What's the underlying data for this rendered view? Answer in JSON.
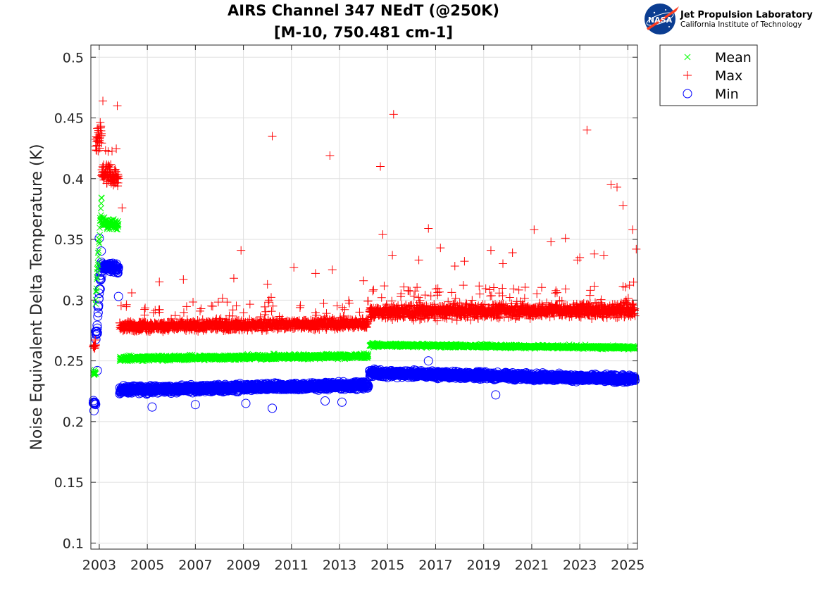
{
  "logo": {
    "emblem_text": "NASA",
    "org_name": "Jet Propulsion Laboratory",
    "org_sub": "California Institute of Technology"
  },
  "chart_data": {
    "type": "scatter",
    "title": [
      "AIRS Channel 347 NEdT (@250K)",
      "[M-10, 750.481 cm-1]"
    ],
    "xlabel": "",
    "ylabel": "Noise Equivalent Delta Temperature (K)",
    "xlim": [
      2002.65,
      2025.4
    ],
    "ylim": [
      0.095,
      0.51
    ],
    "xticks": [
      2003,
      2005,
      2007,
      2009,
      2011,
      2013,
      2015,
      2017,
      2019,
      2021,
      2023,
      2025
    ],
    "yticks": [
      0.1,
      0.15,
      0.2,
      0.25,
      0.3,
      0.35,
      0.4,
      0.45,
      0.5
    ],
    "ytick_labels": [
      "0.1",
      "0.15",
      "0.2",
      "0.25",
      "0.3",
      "0.35",
      "0.4",
      "0.45",
      "0.5"
    ],
    "grid": true,
    "legend_position": "outside-top-right",
    "series": [
      {
        "name": "Mean",
        "marker": "x",
        "color": "#00ff00",
        "segments": [
          {
            "x0": 2002.75,
            "x1": 2002.85,
            "y0": 0.24,
            "y1": 0.24,
            "spread": 0.004
          },
          {
            "x0": 2002.85,
            "x1": 2003.1,
            "y0": 0.3,
            "y1": 0.385,
            "spread": 0.012
          },
          {
            "x0": 2003.1,
            "x1": 2003.8,
            "y0": 0.364,
            "y1": 0.362,
            "spread": 0.006
          },
          {
            "x0": 2003.85,
            "x1": 2014.2,
            "y0": 0.252,
            "y1": 0.254,
            "spread": 0.003
          },
          {
            "x0": 2014.25,
            "x1": 2025.3,
            "y0": 0.263,
            "y1": 0.261,
            "spread": 0.002
          }
        ]
      },
      {
        "name": "Max",
        "marker": "+",
        "color": "#ff0000",
        "segments": [
          {
            "x0": 2002.75,
            "x1": 2002.85,
            "y0": 0.262,
            "y1": 0.262,
            "spread": 0.004
          },
          {
            "x0": 2002.85,
            "x1": 2003.1,
            "y0": 0.43,
            "y1": 0.44,
            "spread": 0.015
          },
          {
            "x0": 2003.1,
            "x1": 2003.8,
            "y0": 0.405,
            "y1": 0.4,
            "spread": 0.01
          },
          {
            "x0": 2003.85,
            "x1": 2014.2,
            "y0": 0.278,
            "y1": 0.281,
            "spread": 0.006
          },
          {
            "x0": 2014.25,
            "x1": 2025.3,
            "y0": 0.29,
            "y1": 0.292,
            "spread": 0.008
          }
        ],
        "outliers": [
          [
            2003.15,
            0.464
          ],
          [
            2003.75,
            0.46
          ],
          [
            2003.95,
            0.376
          ],
          [
            2004.35,
            0.306
          ],
          [
            2005.5,
            0.315
          ],
          [
            2006.5,
            0.317
          ],
          [
            2008.9,
            0.341
          ],
          [
            2008.6,
            0.318
          ],
          [
            2010.2,
            0.435
          ],
          [
            2010.0,
            0.313
          ],
          [
            2011.1,
            0.327
          ],
          [
            2012.0,
            0.322
          ],
          [
            2012.6,
            0.419
          ],
          [
            2012.7,
            0.325
          ],
          [
            2014.0,
            0.316
          ],
          [
            2014.7,
            0.41
          ],
          [
            2014.8,
            0.354
          ],
          [
            2015.25,
            0.453
          ],
          [
            2015.2,
            0.337
          ],
          [
            2016.7,
            0.359
          ],
          [
            2016.3,
            0.333
          ],
          [
            2017.2,
            0.343
          ],
          [
            2018.2,
            0.332
          ],
          [
            2019.3,
            0.341
          ],
          [
            2020.2,
            0.339
          ],
          [
            2021.1,
            0.358
          ],
          [
            2021.8,
            0.348
          ],
          [
            2022.4,
            0.351
          ],
          [
            2023.3,
            0.44
          ],
          [
            2023.6,
            0.338
          ],
          [
            2024.3,
            0.395
          ],
          [
            2024.55,
            0.393
          ],
          [
            2024.8,
            0.378
          ],
          [
            2025.2,
            0.358
          ],
          [
            2025.35,
            0.342
          ],
          [
            2023.0,
            0.335
          ],
          [
            2019.8,
            0.33
          ],
          [
            2017.8,
            0.328
          ],
          [
            2022.9,
            0.333
          ],
          [
            2024.0,
            0.337
          ]
        ]
      },
      {
        "name": "Min",
        "marker": "o",
        "color": "#0000ff",
        "segments": [
          {
            "x0": 2002.75,
            "x1": 2002.85,
            "y0": 0.215,
            "y1": 0.215,
            "spread": 0.004
          },
          {
            "x0": 2002.85,
            "x1": 2003.1,
            "y0": 0.265,
            "y1": 0.33,
            "spread": 0.02
          },
          {
            "x0": 2003.1,
            "x1": 2003.8,
            "y0": 0.328,
            "y1": 0.326,
            "spread": 0.005
          },
          {
            "x0": 2003.85,
            "x1": 2014.2,
            "y0": 0.226,
            "y1": 0.23,
            "spread": 0.004
          },
          {
            "x0": 2014.25,
            "x1": 2025.3,
            "y0": 0.24,
            "y1": 0.235,
            "spread": 0.004
          }
        ],
        "outliers": [
          [
            2002.78,
            0.209
          ],
          [
            2002.92,
            0.242
          ],
          [
            2003.0,
            0.351
          ],
          [
            2003.8,
            0.303
          ],
          [
            2005.2,
            0.212
          ],
          [
            2010.2,
            0.211
          ],
          [
            2016.7,
            0.25
          ],
          [
            2007.0,
            0.214
          ],
          [
            2009.1,
            0.215
          ],
          [
            2012.4,
            0.217
          ],
          [
            2013.1,
            0.216
          ],
          [
            2019.5,
            0.222
          ]
        ]
      }
    ]
  }
}
